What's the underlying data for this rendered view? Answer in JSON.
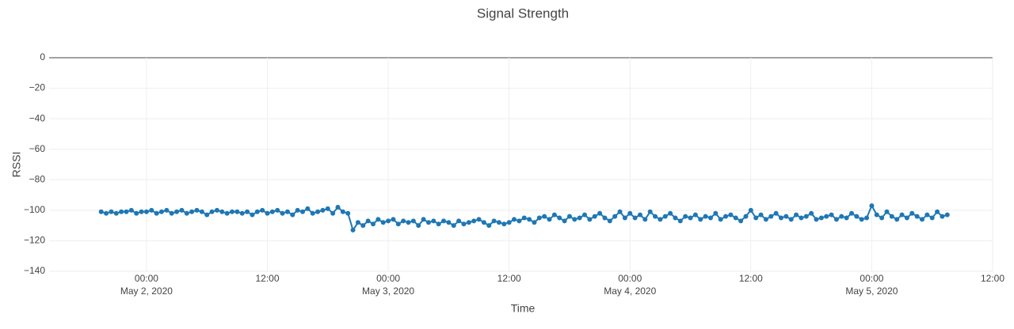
{
  "chart_data": {
    "type": "line",
    "title": "Signal Strength",
    "x_label": "Time",
    "y_label": "RSSI",
    "color": "#1f77b4",
    "grid": true,
    "markers": true,
    "xlim": [
      "2020-05-01 14:20",
      "2020-05-05 12:00"
    ],
    "xticks": [
      {
        "value": "2020-05-02 00:00",
        "label": [
          "00:00",
          "May 2, 2020"
        ]
      },
      {
        "value": "2020-05-02 12:00",
        "label": [
          "12:00"
        ]
      },
      {
        "value": "2020-05-03 00:00",
        "label": [
          "00:00",
          "May 3, 2020"
        ]
      },
      {
        "value": "2020-05-03 12:00",
        "label": [
          "12:00"
        ]
      },
      {
        "value": "2020-05-04 00:00",
        "label": [
          "00:00",
          "May 4, 2020"
        ]
      },
      {
        "value": "2020-05-04 12:00",
        "label": [
          "12:00"
        ]
      },
      {
        "value": "2020-05-05 00:00",
        "label": [
          "00:00",
          "May 5, 2020"
        ]
      },
      {
        "value": "2020-05-05 12:00",
        "label": [
          "12:00"
        ]
      }
    ],
    "ylim": [
      -140,
      0
    ],
    "yticks": [
      0,
      {
        "value": -20,
        "label": "−20"
      },
      {
        "value": -40,
        "label": "−40"
      },
      {
        "value": -60,
        "label": "−60"
      },
      {
        "value": -80,
        "label": "−80"
      },
      {
        "value": -100,
        "label": "−100"
      },
      {
        "value": -120,
        "label": "−120"
      },
      {
        "value": -140,
        "label": "−140"
      }
    ],
    "x": [
      "2020-05-01 19:30",
      "2020-05-01 20:00",
      "2020-05-01 20:30",
      "2020-05-01 21:00",
      "2020-05-01 21:30",
      "2020-05-01 22:00",
      "2020-05-01 22:30",
      "2020-05-01 23:00",
      "2020-05-01 23:30",
      "2020-05-02 00:00",
      "2020-05-02 00:30",
      "2020-05-02 01:00",
      "2020-05-02 01:30",
      "2020-05-02 02:00",
      "2020-05-02 02:30",
      "2020-05-02 03:00",
      "2020-05-02 03:30",
      "2020-05-02 04:00",
      "2020-05-02 04:30",
      "2020-05-02 05:00",
      "2020-05-02 05:30",
      "2020-05-02 06:00",
      "2020-05-02 06:30",
      "2020-05-02 07:00",
      "2020-05-02 07:30",
      "2020-05-02 08:00",
      "2020-05-02 08:30",
      "2020-05-02 09:00",
      "2020-05-02 09:30",
      "2020-05-02 10:00",
      "2020-05-02 10:30",
      "2020-05-02 11:00",
      "2020-05-02 11:30",
      "2020-05-02 12:00",
      "2020-05-02 12:30",
      "2020-05-02 13:00",
      "2020-05-02 13:30",
      "2020-05-02 14:00",
      "2020-05-02 14:30",
      "2020-05-02 15:00",
      "2020-05-02 15:30",
      "2020-05-02 16:00",
      "2020-05-02 16:30",
      "2020-05-02 17:00",
      "2020-05-02 17:30",
      "2020-05-02 18:00",
      "2020-05-02 18:30",
      "2020-05-02 19:00",
      "2020-05-02 19:30",
      "2020-05-02 20:00",
      "2020-05-02 20:30",
      "2020-05-02 21:00",
      "2020-05-02 21:30",
      "2020-05-02 22:00",
      "2020-05-02 22:30",
      "2020-05-02 23:00",
      "2020-05-02 23:30",
      "2020-05-03 00:00",
      "2020-05-03 00:30",
      "2020-05-03 01:00",
      "2020-05-03 01:30",
      "2020-05-03 02:00",
      "2020-05-03 02:30",
      "2020-05-03 03:00",
      "2020-05-03 03:30",
      "2020-05-03 04:00",
      "2020-05-03 04:30",
      "2020-05-03 05:00",
      "2020-05-03 05:30",
      "2020-05-03 06:00",
      "2020-05-03 06:30",
      "2020-05-03 07:00",
      "2020-05-03 07:30",
      "2020-05-03 08:00",
      "2020-05-03 08:30",
      "2020-05-03 09:00",
      "2020-05-03 09:30",
      "2020-05-03 10:00",
      "2020-05-03 10:30",
      "2020-05-03 11:00",
      "2020-05-03 11:30",
      "2020-05-03 12:00",
      "2020-05-03 12:30",
      "2020-05-03 13:00",
      "2020-05-03 13:30",
      "2020-05-03 14:00",
      "2020-05-03 14:30",
      "2020-05-03 15:00",
      "2020-05-03 15:30",
      "2020-05-03 16:00",
      "2020-05-03 16:30",
      "2020-05-03 17:00",
      "2020-05-03 17:30",
      "2020-05-03 18:00",
      "2020-05-03 18:30",
      "2020-05-03 19:00",
      "2020-05-03 19:30",
      "2020-05-03 20:00",
      "2020-05-03 20:30",
      "2020-05-03 21:00",
      "2020-05-03 21:30",
      "2020-05-03 22:00",
      "2020-05-03 22:30",
      "2020-05-03 23:00",
      "2020-05-03 23:30",
      "2020-05-04 00:00",
      "2020-05-04 00:30",
      "2020-05-04 01:00",
      "2020-05-04 01:30",
      "2020-05-04 02:00",
      "2020-05-04 02:30",
      "2020-05-04 03:00",
      "2020-05-04 03:30",
      "2020-05-04 04:00",
      "2020-05-04 04:30",
      "2020-05-04 05:00",
      "2020-05-04 05:30",
      "2020-05-04 06:00",
      "2020-05-04 06:30",
      "2020-05-04 07:00",
      "2020-05-04 07:30",
      "2020-05-04 08:00",
      "2020-05-04 08:30",
      "2020-05-04 09:00",
      "2020-05-04 09:30",
      "2020-05-04 10:00",
      "2020-05-04 10:30",
      "2020-05-04 11:00",
      "2020-05-04 11:30",
      "2020-05-04 12:00",
      "2020-05-04 12:30",
      "2020-05-04 13:00",
      "2020-05-04 13:30",
      "2020-05-04 14:00",
      "2020-05-04 14:30",
      "2020-05-04 15:00",
      "2020-05-04 15:30",
      "2020-05-04 16:00",
      "2020-05-04 16:30",
      "2020-05-04 17:00",
      "2020-05-04 17:30",
      "2020-05-04 18:00",
      "2020-05-04 18:30",
      "2020-05-04 19:00",
      "2020-05-04 19:30",
      "2020-05-04 20:00",
      "2020-05-04 20:30",
      "2020-05-04 21:00",
      "2020-05-04 21:30",
      "2020-05-04 22:00",
      "2020-05-04 22:30",
      "2020-05-04 23:00",
      "2020-05-04 23:30",
      "2020-05-05 00:00",
      "2020-05-05 00:30",
      "2020-05-05 01:00",
      "2020-05-05 01:30",
      "2020-05-05 02:00",
      "2020-05-05 02:30",
      "2020-05-05 03:00",
      "2020-05-05 03:30",
      "2020-05-05 04:00",
      "2020-05-05 04:30",
      "2020-05-05 05:00",
      "2020-05-05 05:30",
      "2020-05-05 06:00",
      "2020-05-05 06:30",
      "2020-05-05 07:00",
      "2020-05-05 07:30"
    ],
    "values": [
      -101,
      -102,
      -101,
      -102,
      -101,
      -101,
      -100,
      -102,
      -101,
      -101,
      -100,
      -102,
      -101,
      -100,
      -102,
      -101,
      -100,
      -102,
      -101,
      -100,
      -101,
      -103,
      -101,
      -100,
      -101,
      -102,
      -101,
      -101,
      -102,
      -101,
      -103,
      -101,
      -100,
      -102,
      -101,
      -100,
      -102,
      -101,
      -103,
      -100,
      -101,
      -99,
      -102,
      -101,
      -100,
      -99,
      -102,
      -98,
      -101,
      -102,
      -113,
      -108,
      -110,
      -107,
      -109,
      -106,
      -108,
      -107,
      -106,
      -109,
      -107,
      -108,
      -107,
      -110,
      -106,
      -108,
      -107,
      -109,
      -107,
      -108,
      -110,
      -107,
      -109,
      -108,
      -107,
      -106,
      -108,
      -110,
      -107,
      -108,
      -109,
      -108,
      -106,
      -107,
      -105,
      -106,
      -108,
      -105,
      -104,
      -106,
      -103,
      -105,
      -107,
      -104,
      -106,
      -105,
      -103,
      -106,
      -104,
      -102,
      -105,
      -107,
      -104,
      -101,
      -105,
      -102,
      -105,
      -103,
      -106,
      -101,
      -104,
      -106,
      -104,
      -102,
      -105,
      -107,
      -104,
      -105,
      -103,
      -106,
      -104,
      -105,
      -102,
      -106,
      -104,
      -103,
      -105,
      -107,
      -104,
      -100,
      -105,
      -103,
      -106,
      -104,
      -102,
      -105,
      -104,
      -106,
      -103,
      -105,
      -104,
      -102,
      -106,
      -105,
      -104,
      -103,
      -106,
      -104,
      -105,
      -102,
      -104,
      -106,
      -105,
      -97,
      -103,
      -105,
      -101,
      -104,
      -106,
      -103,
      -105,
      -102,
      -104,
      -106,
      -103,
      -105,
      -101,
      -104,
      -103
    ]
  }
}
